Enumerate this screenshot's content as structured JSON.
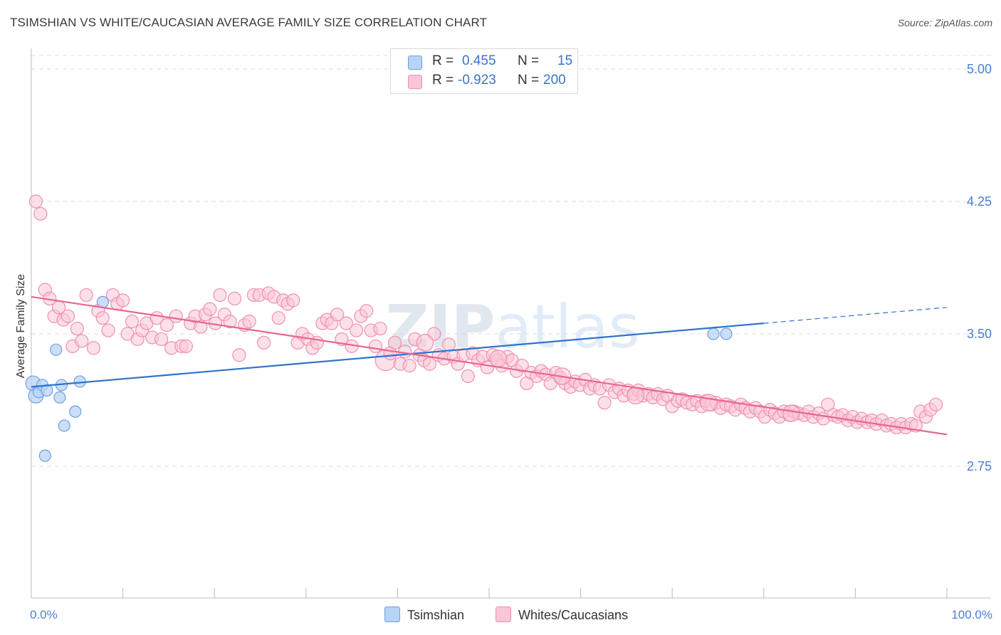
{
  "title": "TSIMSHIAN VS WHITE/CAUCASIAN AVERAGE FAMILY SIZE CORRELATION CHART",
  "source": "Source: ZipAtlas.com",
  "watermark": "ZIPatlas",
  "colors": {
    "tsimshian_fill": "#b8d3f5",
    "tsimshian_stroke": "#6f9fe0",
    "tsimshian_line": "#2f72cc",
    "white_fill": "#f9c6d6",
    "white_stroke": "#f08fb0",
    "white_line": "#e8668f",
    "tick_label": "#4a7fd6",
    "grid": "#dddddd"
  },
  "legend": {
    "rows": [
      {
        "r_label": "R =",
        "r_value": "0.455",
        "n_label": "N =",
        "n_value": "15"
      },
      {
        "r_label": "R =",
        "r_value": "-0.923",
        "n_label": "N =",
        "n_value": "200"
      }
    ]
  },
  "bottom_legend": [
    "Tsimshian",
    "Whites/Caucasians"
  ],
  "chart_data": {
    "type": "scatter",
    "title": "TSIMSHIAN VS WHITE/CAUCASIAN AVERAGE FAMILY SIZE CORRELATION CHART",
    "xlabel": "",
    "ylabel": "Average Family Size",
    "xlim": [
      0,
      100
    ],
    "ylim": [
      2.0,
      5.2
    ],
    "yticks": [
      2.75,
      3.5,
      4.25,
      5.0
    ],
    "ytick_labels": [
      "2.75",
      "3.50",
      "4.25",
      "5.00"
    ],
    "xtick_labels": [
      "0.0%",
      "100.0%"
    ],
    "grid": true,
    "series": [
      {
        "name": "Tsimshian",
        "r": 0.455,
        "n": 15,
        "points": [
          {
            "x": 0.2,
            "y": 3.22,
            "s": 1.3
          },
          {
            "x": 0.5,
            "y": 3.15,
            "s": 1.3
          },
          {
            "x": 0.8,
            "y": 3.17,
            "s": 1.0
          },
          {
            "x": 1.2,
            "y": 3.21,
            "s": 1.0
          },
          {
            "x": 1.7,
            "y": 3.18,
            "s": 1.0
          },
          {
            "x": 1.5,
            "y": 2.81,
            "s": 1.0
          },
          {
            "x": 2.7,
            "y": 3.41,
            "s": 1.0
          },
          {
            "x": 3.1,
            "y": 3.14,
            "s": 1.0
          },
          {
            "x": 3.3,
            "y": 3.21,
            "s": 1.0
          },
          {
            "x": 3.6,
            "y": 2.98,
            "s": 1.0
          },
          {
            "x": 4.8,
            "y": 3.06,
            "s": 1.0
          },
          {
            "x": 5.3,
            "y": 3.23,
            "s": 1.0
          },
          {
            "x": 7.8,
            "y": 3.68,
            "s": 1.0
          },
          {
            "x": 74.5,
            "y": 3.5,
            "s": 1.0
          },
          {
            "x": 75.9,
            "y": 3.5,
            "s": 1.0
          }
        ],
        "trend": {
          "x0": 0,
          "y0": 3.2,
          "x1": 80,
          "y1": 3.56,
          "dash_x1": 100,
          "dash_y1": 3.65
        }
      },
      {
        "name": "Whites/Caucasians",
        "r": -0.923,
        "n": 200,
        "points": [
          {
            "x": 0.5,
            "y": 4.25
          },
          {
            "x": 1.0,
            "y": 4.18
          },
          {
            "x": 1.5,
            "y": 3.75
          },
          {
            "x": 2.0,
            "y": 3.7
          },
          {
            "x": 2.5,
            "y": 3.6
          },
          {
            "x": 3.0,
            "y": 3.65
          },
          {
            "x": 3.5,
            "y": 3.58
          },
          {
            "x": 4.0,
            "y": 3.6
          },
          {
            "x": 4.5,
            "y": 3.43
          },
          {
            "x": 5.0,
            "y": 3.53
          },
          {
            "x": 5.5,
            "y": 3.46
          },
          {
            "x": 6.0,
            "y": 3.72
          },
          {
            "x": 6.8,
            "y": 3.42
          },
          {
            "x": 7.3,
            "y": 3.63
          },
          {
            "x": 7.8,
            "y": 3.59
          },
          {
            "x": 8.4,
            "y": 3.52
          },
          {
            "x": 8.9,
            "y": 3.72
          },
          {
            "x": 9.4,
            "y": 3.67
          },
          {
            "x": 10.0,
            "y": 3.69
          },
          {
            "x": 10.5,
            "y": 3.5
          },
          {
            "x": 11.0,
            "y": 3.57
          },
          {
            "x": 11.6,
            "y": 3.47
          },
          {
            "x": 12.1,
            "y": 3.52
          },
          {
            "x": 12.6,
            "y": 3.56
          },
          {
            "x": 13.2,
            "y": 3.48
          },
          {
            "x": 13.7,
            "y": 3.59
          },
          {
            "x": 14.2,
            "y": 3.47
          },
          {
            "x": 14.8,
            "y": 3.55
          },
          {
            "x": 15.3,
            "y": 3.42
          },
          {
            "x": 15.8,
            "y": 3.6
          },
          {
            "x": 16.4,
            "y": 3.43
          },
          {
            "x": 16.9,
            "y": 3.43
          },
          {
            "x": 17.4,
            "y": 3.56
          },
          {
            "x": 17.9,
            "y": 3.6
          },
          {
            "x": 18.5,
            "y": 3.54
          },
          {
            "x": 19.0,
            "y": 3.61
          },
          {
            "x": 19.5,
            "y": 3.64
          },
          {
            "x": 20.1,
            "y": 3.56
          },
          {
            "x": 20.6,
            "y": 3.72
          },
          {
            "x": 21.1,
            "y": 3.61
          },
          {
            "x": 21.7,
            "y": 3.57
          },
          {
            "x": 22.2,
            "y": 3.7
          },
          {
            "x": 22.7,
            "y": 3.38
          },
          {
            "x": 23.3,
            "y": 3.55
          },
          {
            "x": 23.8,
            "y": 3.57
          },
          {
            "x": 24.3,
            "y": 3.72
          },
          {
            "x": 24.9,
            "y": 3.72
          },
          {
            "x": 25.4,
            "y": 3.45
          },
          {
            "x": 25.9,
            "y": 3.73
          },
          {
            "x": 26.5,
            "y": 3.71
          },
          {
            "x": 27.0,
            "y": 3.59
          },
          {
            "x": 27.5,
            "y": 3.69
          },
          {
            "x": 28.0,
            "y": 3.67
          },
          {
            "x": 28.6,
            "y": 3.69
          },
          {
            "x": 29.1,
            "y": 3.45
          },
          {
            "x": 29.6,
            "y": 3.5
          },
          {
            "x": 30.2,
            "y": 3.47
          },
          {
            "x": 30.7,
            "y": 3.42
          },
          {
            "x": 31.2,
            "y": 3.45
          },
          {
            "x": 31.8,
            "y": 3.56
          },
          {
            "x": 32.3,
            "y": 3.58
          },
          {
            "x": 32.8,
            "y": 3.56
          },
          {
            "x": 33.4,
            "y": 3.61
          },
          {
            "x": 33.9,
            "y": 3.47
          },
          {
            "x": 34.4,
            "y": 3.56
          },
          {
            "x": 35.0,
            "y": 3.43
          },
          {
            "x": 35.5,
            "y": 3.52
          },
          {
            "x": 36.0,
            "y": 3.6
          },
          {
            "x": 36.6,
            "y": 3.63
          },
          {
            "x": 37.1,
            "y": 3.52
          },
          {
            "x": 37.6,
            "y": 3.43
          },
          {
            "x": 38.1,
            "y": 3.53
          },
          {
            "x": 38.7,
            "y": 3.35,
            "s": 1.6
          },
          {
            "x": 39.2,
            "y": 3.39
          },
          {
            "x": 39.7,
            "y": 3.45
          },
          {
            "x": 40.3,
            "y": 3.33
          },
          {
            "x": 40.8,
            "y": 3.4
          },
          {
            "x": 41.3,
            "y": 3.32
          },
          {
            "x": 41.9,
            "y": 3.47
          },
          {
            "x": 42.4,
            "y": 3.38
          },
          {
            "x": 42.9,
            "y": 3.35
          },
          {
            "x": 43.5,
            "y": 3.33
          },
          {
            "x": 44.0,
            "y": 3.5
          },
          {
            "x": 44.5,
            "y": 3.38
          },
          {
            "x": 45.1,
            "y": 3.36
          },
          {
            "x": 45.6,
            "y": 3.44
          },
          {
            "x": 46.1,
            "y": 3.37
          },
          {
            "x": 46.6,
            "y": 3.33
          },
          {
            "x": 47.2,
            "y": 3.38
          },
          {
            "x": 47.7,
            "y": 3.26
          },
          {
            "x": 48.2,
            "y": 3.39
          },
          {
            "x": 48.8,
            "y": 3.35
          },
          {
            "x": 49.3,
            "y": 3.37
          },
          {
            "x": 49.8,
            "y": 3.31
          },
          {
            "x": 50.4,
            "y": 3.38
          },
          {
            "x": 50.9,
            "y": 3.35
          },
          {
            "x": 51.4,
            "y": 3.32
          },
          {
            "x": 52.0,
            "y": 3.37
          },
          {
            "x": 52.5,
            "y": 3.35
          },
          {
            "x": 53.0,
            "y": 3.29
          },
          {
            "x": 53.6,
            "y": 3.32
          },
          {
            "x": 54.1,
            "y": 3.22
          },
          {
            "x": 54.6,
            "y": 3.28
          },
          {
            "x": 55.2,
            "y": 3.26
          },
          {
            "x": 55.7,
            "y": 3.29
          },
          {
            "x": 56.2,
            "y": 3.27
          },
          {
            "x": 56.7,
            "y": 3.22
          },
          {
            "x": 57.3,
            "y": 3.28
          },
          {
            "x": 57.8,
            "y": 3.25
          },
          {
            "x": 58.3,
            "y": 3.22
          },
          {
            "x": 58.9,
            "y": 3.2
          },
          {
            "x": 59.4,
            "y": 3.23
          },
          {
            "x": 59.9,
            "y": 3.21
          },
          {
            "x": 60.5,
            "y": 3.24
          },
          {
            "x": 61.0,
            "y": 3.19
          },
          {
            "x": 61.5,
            "y": 3.21
          },
          {
            "x": 62.1,
            "y": 3.19
          },
          {
            "x": 62.6,
            "y": 3.11
          },
          {
            "x": 63.1,
            "y": 3.21
          },
          {
            "x": 63.7,
            "y": 3.17
          },
          {
            "x": 64.2,
            "y": 3.19
          },
          {
            "x": 64.7,
            "y": 3.15
          },
          {
            "x": 65.2,
            "y": 3.18
          },
          {
            "x": 65.8,
            "y": 3.16
          },
          {
            "x": 66.3,
            "y": 3.18
          },
          {
            "x": 66.8,
            "y": 3.15
          },
          {
            "x": 67.4,
            "y": 3.16
          },
          {
            "x": 67.9,
            "y": 3.14
          },
          {
            "x": 68.4,
            "y": 3.16
          },
          {
            "x": 69.0,
            "y": 3.13
          },
          {
            "x": 69.5,
            "y": 3.15
          },
          {
            "x": 70.0,
            "y": 3.09
          },
          {
            "x": 70.6,
            "y": 3.12
          },
          {
            "x": 71.1,
            "y": 3.13
          },
          {
            "x": 71.6,
            "y": 3.11
          },
          {
            "x": 72.2,
            "y": 3.1
          },
          {
            "x": 72.7,
            "y": 3.12
          },
          {
            "x": 73.2,
            "y": 3.09
          },
          {
            "x": 73.7,
            "y": 3.12
          },
          {
            "x": 74.3,
            "y": 3.1
          },
          {
            "x": 74.8,
            "y": 3.11
          },
          {
            "x": 75.3,
            "y": 3.08
          },
          {
            "x": 75.9,
            "y": 3.1
          },
          {
            "x": 76.4,
            "y": 3.09
          },
          {
            "x": 76.9,
            "y": 3.07
          },
          {
            "x": 77.5,
            "y": 3.1
          },
          {
            "x": 78.0,
            "y": 3.08
          },
          {
            "x": 78.5,
            "y": 3.06
          },
          {
            "x": 79.1,
            "y": 3.08
          },
          {
            "x": 79.6,
            "y": 3.06
          },
          {
            "x": 80.1,
            "y": 3.03
          },
          {
            "x": 80.7,
            "y": 3.07
          },
          {
            "x": 81.2,
            "y": 3.05
          },
          {
            "x": 81.7,
            "y": 3.03
          },
          {
            "x": 82.2,
            "y": 3.06
          },
          {
            "x": 82.8,
            "y": 3.04
          },
          {
            "x": 83.3,
            "y": 3.06
          },
          {
            "x": 83.8,
            "y": 3.05
          },
          {
            "x": 84.4,
            "y": 3.04
          },
          {
            "x": 84.9,
            "y": 3.06
          },
          {
            "x": 85.4,
            "y": 3.03
          },
          {
            "x": 86.0,
            "y": 3.05
          },
          {
            "x": 86.5,
            "y": 3.02
          },
          {
            "x": 87.0,
            "y": 3.1
          },
          {
            "x": 87.6,
            "y": 3.04
          },
          {
            "x": 88.1,
            "y": 3.03
          },
          {
            "x": 88.6,
            "y": 3.04
          },
          {
            "x": 89.2,
            "y": 3.01
          },
          {
            "x": 89.7,
            "y": 3.03
          },
          {
            "x": 90.2,
            "y": 3.0
          },
          {
            "x": 90.7,
            "y": 3.02
          },
          {
            "x": 91.3,
            "y": 3.0
          },
          {
            "x": 91.8,
            "y": 3.01
          },
          {
            "x": 92.3,
            "y": 2.99
          },
          {
            "x": 92.9,
            "y": 3.01
          },
          {
            "x": 93.4,
            "y": 2.98
          },
          {
            "x": 93.9,
            "y": 2.99
          },
          {
            "x": 94.5,
            "y": 2.97
          },
          {
            "x": 95.0,
            "y": 2.99
          },
          {
            "x": 95.5,
            "y": 2.97
          },
          {
            "x": 96.1,
            "y": 2.99
          },
          {
            "x": 96.6,
            "y": 2.98
          },
          {
            "x": 97.1,
            "y": 3.06
          },
          {
            "x": 97.7,
            "y": 3.03
          },
          {
            "x": 98.2,
            "y": 3.07
          },
          {
            "x": 98.8,
            "y": 3.1
          },
          {
            "x": 43.0,
            "y": 3.45,
            "s": 1.3
          },
          {
            "x": 51.0,
            "y": 3.36,
            "s": 1.3
          },
          {
            "x": 58.0,
            "y": 3.26,
            "s": 1.3
          },
          {
            "x": 66.0,
            "y": 3.15,
            "s": 1.3
          },
          {
            "x": 74.0,
            "y": 3.11,
            "s": 1.3
          },
          {
            "x": 83.0,
            "y": 3.05,
            "s": 1.3
          }
        ],
        "trend": {
          "x0": 0,
          "y0": 3.71,
          "x1": 100,
          "y1": 2.93
        }
      }
    ]
  }
}
